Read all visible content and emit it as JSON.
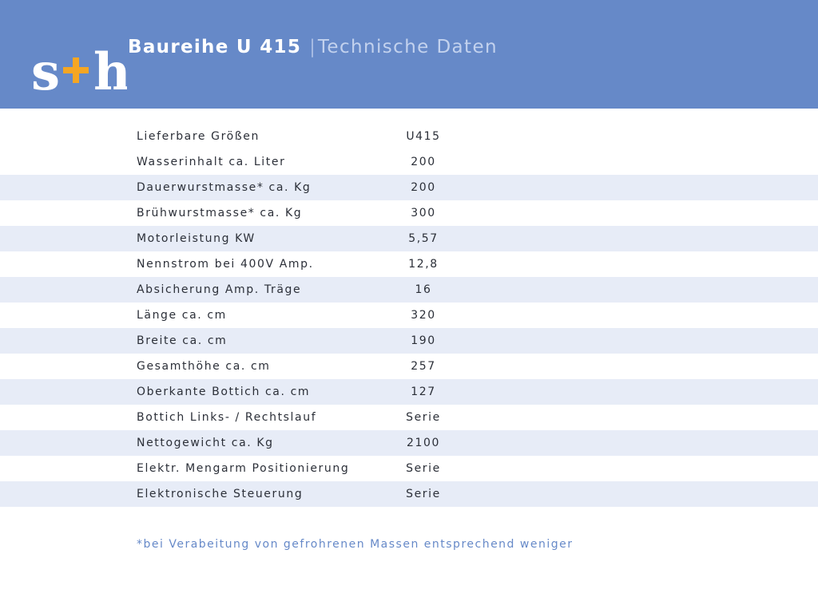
{
  "header": {
    "logo_text": "s+h",
    "title": "Baureihe U 415",
    "separator": "|",
    "subtitle": "Technische Daten"
  },
  "colors": {
    "header_bg": "#6689c8",
    "logo_orange": "#f5a623",
    "row_shade": "#e7ecf7",
    "footnote_text": "#6689c8"
  },
  "specs": [
    {
      "label": "Lieferbare Größen",
      "value": "U415"
    },
    {
      "label": "Wasserinhalt ca. Liter",
      "value": "200"
    },
    {
      "label": "Dauerwurstmasse* ca. Kg",
      "value": "200"
    },
    {
      "label": "Brühwurstmasse* ca. Kg",
      "value": "300"
    },
    {
      "label": "Motorleistung KW",
      "value": "5,57"
    },
    {
      "label": "Nennstrom bei 400V Amp.",
      "value": "12,8"
    },
    {
      "label": "Absicherung Amp. Träge",
      "value": "16"
    },
    {
      "label": "Länge ca. cm",
      "value": "320"
    },
    {
      "label": "Breite ca. cm",
      "value": "190"
    },
    {
      "label": "Gesamthöhe ca. cm",
      "value": "257"
    },
    {
      "label": "Oberkante Bottich ca. cm",
      "value": "127"
    },
    {
      "label": "Bottich Links- / Rechtslauf",
      "value": "Serie"
    },
    {
      "label": "Nettogewicht ca. Kg",
      "value": "2100"
    },
    {
      "label": "Elektr. Mengarm Positionierung",
      "value": "Serie"
    },
    {
      "label": "Elektronische Steuerung",
      "value": "Serie"
    }
  ],
  "footnote": "*bei Verabeitung von gefrohrenen Massen entsprechend weniger"
}
